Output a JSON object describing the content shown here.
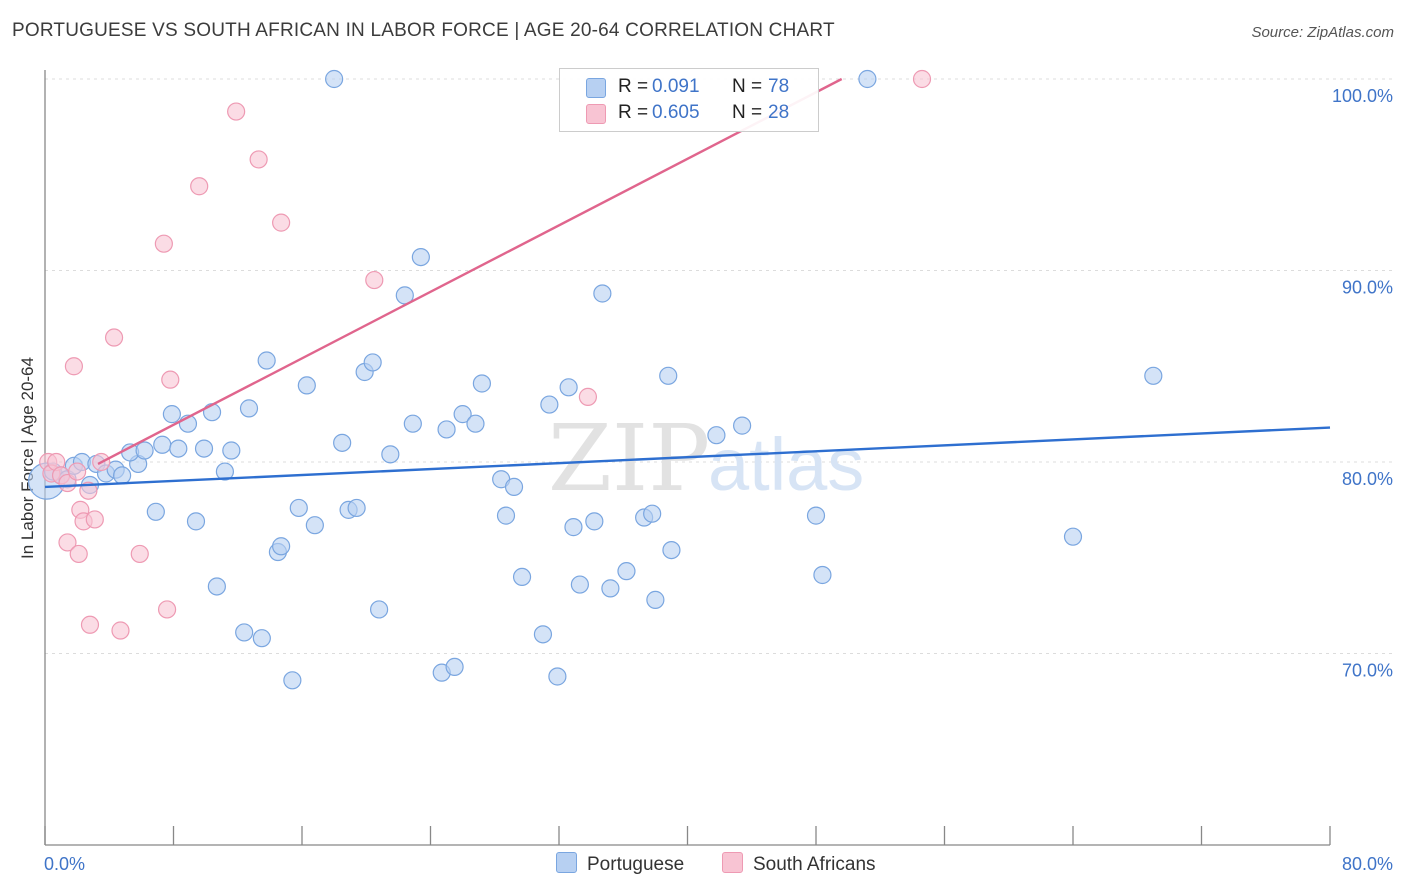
{
  "title": "PORTUGUESE VS SOUTH AFRICAN IN LABOR FORCE | AGE 20-64 CORRELATION CHART",
  "source": "Source: ZipAtlas.com",
  "watermark": {
    "zip": "ZIP",
    "atlas": "atlas"
  },
  "legend": {
    "portuguese": {
      "r_label": "R =",
      "r_value": "0.091",
      "n_label": "N =",
      "n_value": "78"
    },
    "south_africans": {
      "r_label": "R =",
      "r_value": "0.605",
      "n_label": "N =",
      "n_value": "28"
    }
  },
  "colors": {
    "blue_fill": "#b7d0f2",
    "blue_stroke": "#7aa6e0",
    "blue_line": "#2e6fd0",
    "pink_fill": "#f8c4d3",
    "pink_stroke": "#ee9ab3",
    "pink_line": "#e0658d",
    "tick_text": "#3f74c8"
  },
  "chart_data": {
    "type": "scatter",
    "title": "PORTUGUESE VS SOUTH AFRICAN IN LABOR FORCE | AGE 20-64 CORRELATION CHART",
    "xlabel": "",
    "ylabel": "In Labor Force | Age 20-64",
    "xlim": [
      0,
      80
    ],
    "ylim": [
      60,
      101
    ],
    "x_tick_labels": [
      {
        "value": 0,
        "label": "0.0%"
      },
      {
        "value": 80,
        "label": "80.0%"
      }
    ],
    "y_tick_labels": [
      {
        "value": 100,
        "label": "100.0%"
      },
      {
        "value": 90,
        "label": "90.0%"
      },
      {
        "value": 80,
        "label": "80.0%"
      },
      {
        "value": 70,
        "label": "70.0%"
      }
    ],
    "series": [
      {
        "name": "Portuguese",
        "color": "#b7d0f2",
        "points": [
          [
            0.1,
            79.0
          ],
          [
            0.5,
            79.5
          ],
          [
            1.0,
            79.3
          ],
          [
            1.4,
            79.1
          ],
          [
            1.8,
            79.8
          ],
          [
            2.3,
            80.0
          ],
          [
            2.8,
            78.8
          ],
          [
            3.2,
            79.9
          ],
          [
            3.8,
            79.4
          ],
          [
            4.4,
            79.6
          ],
          [
            4.8,
            79.3
          ],
          [
            5.8,
            79.9
          ],
          [
            5.3,
            80.5
          ],
          [
            6.2,
            80.6
          ],
          [
            6.9,
            77.4
          ],
          [
            7.3,
            80.9
          ],
          [
            7.9,
            82.5
          ],
          [
            8.3,
            80.7
          ],
          [
            8.9,
            82.0
          ],
          [
            9.4,
            76.9
          ],
          [
            9.9,
            80.7
          ],
          [
            10.4,
            82.6
          ],
          [
            10.7,
            73.5
          ],
          [
            11.2,
            79.5
          ],
          [
            11.6,
            80.6
          ],
          [
            12.4,
            71.1
          ],
          [
            12.7,
            82.8
          ],
          [
            13.5,
            70.8
          ],
          [
            13.8,
            85.3
          ],
          [
            14.5,
            75.3
          ],
          [
            14.7,
            75.6
          ],
          [
            15.4,
            68.6
          ],
          [
            15.8,
            77.6
          ],
          [
            16.3,
            84.0
          ],
          [
            16.8,
            76.7
          ],
          [
            18.0,
            100.0
          ],
          [
            18.5,
            81.0
          ],
          [
            18.9,
            77.5
          ],
          [
            19.4,
            77.6
          ],
          [
            19.9,
            84.7
          ],
          [
            20.4,
            85.2
          ],
          [
            20.8,
            72.3
          ],
          [
            21.5,
            80.4
          ],
          [
            22.4,
            88.7
          ],
          [
            22.9,
            82.0
          ],
          [
            23.4,
            90.7
          ],
          [
            24.7,
            69.0
          ],
          [
            25.0,
            81.7
          ],
          [
            25.5,
            69.3
          ],
          [
            26.0,
            82.5
          ],
          [
            26.8,
            82.0
          ],
          [
            27.2,
            84.1
          ],
          [
            28.4,
            79.1
          ],
          [
            28.7,
            77.2
          ],
          [
            29.2,
            78.7
          ],
          [
            29.7,
            74.0
          ],
          [
            31.0,
            71.0
          ],
          [
            31.4,
            83.0
          ],
          [
            31.9,
            68.8
          ],
          [
            32.6,
            83.9
          ],
          [
            32.9,
            76.6
          ],
          [
            33.3,
            73.6
          ],
          [
            34.2,
            76.9
          ],
          [
            34.7,
            88.8
          ],
          [
            35.2,
            73.4
          ],
          [
            36.2,
            74.3
          ],
          [
            37.3,
            77.1
          ],
          [
            37.8,
            77.3
          ],
          [
            38.0,
            72.8
          ],
          [
            39.0,
            75.4
          ],
          [
            38.8,
            84.5
          ],
          [
            41.8,
            81.4
          ],
          [
            43.4,
            81.9
          ],
          [
            48.0,
            77.2
          ],
          [
            48.4,
            74.1
          ],
          [
            51.2,
            100.0
          ],
          [
            64.0,
            76.1
          ],
          [
            69.0,
            84.5
          ]
        ]
      },
      {
        "name": "South Africans",
        "color": "#f8c4d3",
        "points": [
          [
            0.2,
            80.0
          ],
          [
            0.4,
            79.4
          ],
          [
            0.7,
            80.0
          ],
          [
            1.0,
            79.3
          ],
          [
            1.4,
            78.9
          ],
          [
            1.8,
            85.0
          ],
          [
            2.2,
            77.5
          ],
          [
            2.4,
            76.9
          ],
          [
            2.7,
            78.5
          ],
          [
            3.1,
            77.0
          ],
          [
            1.4,
            75.8
          ],
          [
            2.1,
            75.2
          ],
          [
            3.5,
            80.0
          ],
          [
            4.3,
            86.5
          ],
          [
            2.8,
            71.5
          ],
          [
            4.7,
            71.2
          ],
          [
            5.9,
            75.2
          ],
          [
            7.4,
            91.4
          ],
          [
            7.6,
            72.3
          ],
          [
            7.8,
            84.3
          ],
          [
            9.6,
            94.4
          ],
          [
            11.9,
            98.3
          ],
          [
            13.3,
            95.8
          ],
          [
            14.7,
            92.5
          ],
          [
            20.5,
            89.5
          ],
          [
            33.8,
            83.4
          ],
          [
            54.6,
            100.0
          ],
          [
            2.0,
            79.5
          ]
        ]
      }
    ],
    "trend_lines": [
      {
        "name": "Portuguese",
        "color": "#2e6fd0",
        "x": [
          0,
          80
        ],
        "y": [
          78.7,
          81.8
        ]
      },
      {
        "name": "South Africans",
        "color": "#e0658d",
        "x": [
          3.3,
          49.6
        ],
        "y": [
          79.9,
          100.0
        ]
      }
    ],
    "legend_position": "top-center",
    "bottom_legend": [
      "Portuguese",
      "South Africans"
    ],
    "grid": true
  }
}
